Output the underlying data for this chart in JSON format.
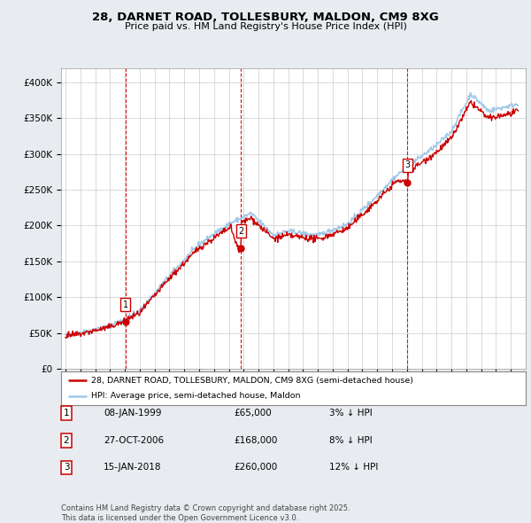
{
  "title_line1": "28, DARNET ROAD, TOLLESBURY, MALDON, CM9 8XG",
  "title_line2": "Price paid vs. HM Land Registry's House Price Index (HPI)",
  "ylim": [
    0,
    420000
  ],
  "yticks": [
    0,
    50000,
    100000,
    150000,
    200000,
    250000,
    300000,
    350000,
    400000
  ],
  "ytick_labels": [
    "£0",
    "£50K",
    "£100K",
    "£150K",
    "£200K",
    "£250K",
    "£300K",
    "£350K",
    "£400K"
  ],
  "hpi_color": "#a0c8e8",
  "price_color": "#cc0000",
  "vline_color": "#cc0000",
  "sale_dates_num": [
    1999.04,
    2006.82,
    2018.04
  ],
  "sale_prices": [
    65000,
    168000,
    260000
  ],
  "sale_labels": [
    "1",
    "2",
    "3"
  ],
  "legend_line1": "28, DARNET ROAD, TOLLESBURY, MALDON, CM9 8XG (semi-detached house)",
  "legend_line2": "HPI: Average price, semi-detached house, Maldon",
  "table_entries": [
    {
      "num": "1",
      "date": "08-JAN-1999",
      "price": "£65,000",
      "hpi": "3% ↓ HPI"
    },
    {
      "num": "2",
      "date": "27-OCT-2006",
      "price": "£168,000",
      "hpi": "8% ↓ HPI"
    },
    {
      "num": "3",
      "date": "15-JAN-2018",
      "price": "£260,000",
      "hpi": "12% ↓ HPI"
    }
  ],
  "footer": "Contains HM Land Registry data © Crown copyright and database right 2025.\nThis data is licensed under the Open Government Licence v3.0.",
  "bg_color": "#e8ecf0",
  "plot_bg_color": "#ffffff"
}
